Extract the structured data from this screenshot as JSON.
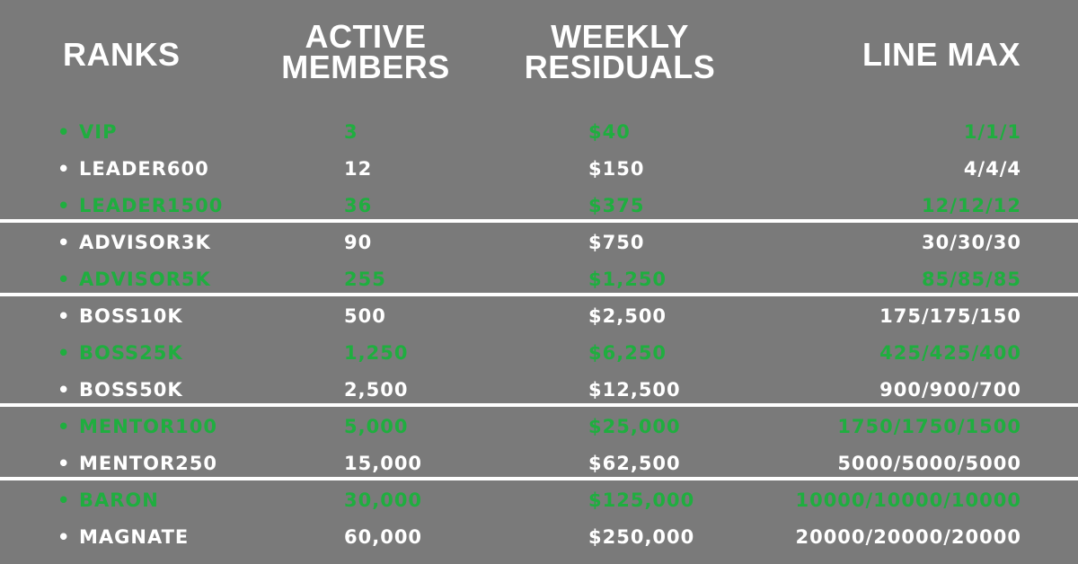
{
  "headers": {
    "ranks": "RANKS",
    "active": [
      "ACTIVE",
      "MEMBERS"
    ],
    "weekly": [
      "WEEKLY",
      "RESIDUALS"
    ],
    "line": "LINE MAX"
  },
  "colors": {
    "background": "#7a7a7a",
    "white": "#ffffff",
    "green": "#1fae3f"
  },
  "rows": [
    {
      "rank": "VIP",
      "active": "3",
      "weekly": "$40",
      "line": "1/1/1",
      "color": "green"
    },
    {
      "rank": "LEADER600",
      "active": "12",
      "weekly": "$150",
      "line": "4/4/4",
      "color": "white"
    },
    {
      "rank": "LEADER1500",
      "active": "36",
      "weekly": "$375",
      "line": "12/12/12",
      "color": "green"
    },
    {
      "rank": "ADVISOR3K",
      "active": "90",
      "weekly": "$750",
      "line": "30/30/30",
      "color": "white"
    },
    {
      "rank": "ADVISOR5K",
      "active": "255",
      "weekly": "$1,250",
      "line": "85/85/85",
      "color": "green"
    },
    {
      "rank": "BOSS10K",
      "active": "500",
      "weekly": "$2,500",
      "line": "175/175/150",
      "color": "white"
    },
    {
      "rank": "BOSS25K",
      "active": "1,250",
      "weekly": "$6,250",
      "line": "425/425/400",
      "color": "green"
    },
    {
      "rank": "BOSS50K",
      "active": "2,500",
      "weekly": "$12,500",
      "line": "900/900/700",
      "color": "white"
    },
    {
      "rank": "MENTOR100",
      "active": "5,000",
      "weekly": "$25,000",
      "line": "1750/1750/1500",
      "color": "green"
    },
    {
      "rank": "MENTOR250",
      "active": "15,000",
      "weekly": "$62,500",
      "line": "5000/5000/5000",
      "color": "white"
    },
    {
      "rank": "BARON",
      "active": "30,000",
      "weekly": "$125,000",
      "line": "10000/10000/10000",
      "color": "green"
    },
    {
      "rank": "MAGNATE",
      "active": "60,000",
      "weekly": "$250,000",
      "line": "20000/20000/20000",
      "color": "white"
    }
  ]
}
